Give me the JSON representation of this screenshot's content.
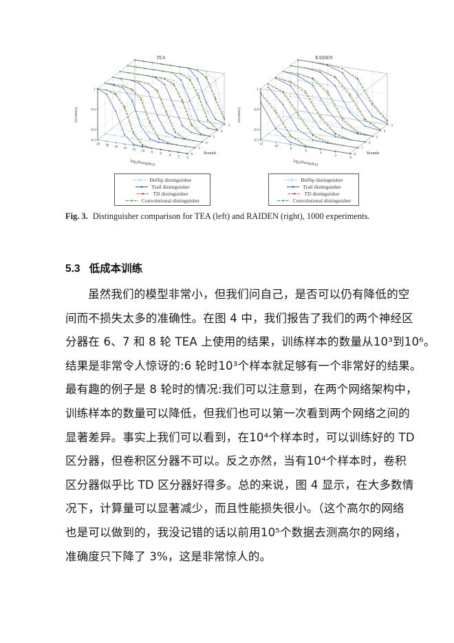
{
  "page": {
    "background": "#ffffff",
    "text_color": "#1a1a1a"
  },
  "figure": {
    "caption_label": "Fig. 3.",
    "caption_text": "Distinguisher comparison for TEA (left) and RAIDEN (right), 1000 experiments.",
    "legend_items": [
      {
        "label": "Bitflip distinguisher",
        "color": "#72cbd1",
        "dash": "2,1.6"
      },
      {
        "label": "Trail distinguisher",
        "color": "#3f51a5",
        "dash": ""
      },
      {
        "label": "TD distinguisher",
        "color": "#bb432e",
        "dash": "3,1.6"
      },
      {
        "label": "Convolutional distinguisher",
        "color": "#3f9b4f",
        "dash": "4,1.8"
      }
    ]
  },
  "section": {
    "number": "5.3",
    "title": "低成本训练",
    "lines": [
      "虽然我们的模型非常小，但我们问自己，是否可以仍有降低的空",
      "间而不损失太多的准确性。在图 4 中，我们报告了我们的两个神经区",
      "分器在 6、7 和 8 轮 TEA 上使用的结果，训练样本的数量从10³到10⁶。",
      "结果是非常令人惊讶的:6 轮时10³个样本就足够有一个非常好的结果。",
      "最有趣的例子是 8 轮时的情况:我们可以注意到，在两个网络架构中，",
      "训练样本的数量可以降低，但我们也可以第一次看到两个网络之间的",
      "显著差异。事实上我们可以看到，在10⁴个样本时，可以训练好的 TD",
      "区分器，但卷积区分器不可以。反之亦然，当有10⁴个样本时，卷积",
      "区分器似乎比 TD 区分器好得多。总的来说，图 4 显示，在大多数情",
      "况下，计算量可以显著减少，而且性能损失很小。（这个高尔的网络",
      "也是可以做到的，我没记错的话以前用10⁵个数据去测高尔的网络，",
      "准确度只下降了 3%，这是非常惊人的。"
    ]
  },
  "chart_data": [
    {
      "type": "line",
      "projection": "3d",
      "title": "TEA",
      "xlabel": "log₂(#samples)",
      "ylabel": "Rounds",
      "zlabel": "Accuracy",
      "x": [
        20,
        18,
        16,
        14,
        12,
        10,
        8,
        6,
        4,
        2,
        0
      ],
      "rounds": [
        3,
        4,
        5,
        6,
        7,
        8
      ],
      "zlim": [
        0.5,
        1
      ],
      "z_ticks": [
        0.5,
        0.6,
        0.8,
        1
      ],
      "grid": true,
      "legend_position": "below",
      "series": [
        {
          "name": "Bitflip distinguisher",
          "color": "#72cbd1",
          "dash": "2,1.6",
          "values_by_round": {
            "3": [
              1,
              1,
              1,
              1,
              1,
              1,
              1,
              1,
              0.99,
              0.92,
              0.58
            ],
            "4": [
              1,
              1,
              1,
              1,
              1,
              1,
              1,
              0.99,
              0.95,
              0.67,
              0.51
            ],
            "5": [
              1,
              1,
              1,
              1,
              1,
              1,
              0.99,
              0.95,
              0.67,
              0.51,
              0.5
            ],
            "6": [
              1,
              0.99,
              0.87,
              0.63,
              0.52,
              0.5,
              0.5,
              0.5,
              0.5,
              0.5,
              0.5
            ],
            "7": [
              0.5,
              0.5,
              0.5,
              0.5,
              0.5,
              0.5,
              0.5,
              0.5,
              0.5,
              0.5,
              0.5
            ],
            "8": [
              0.5,
              0.5,
              0.5,
              0.5,
              0.5,
              0.5,
              0.5,
              0.5,
              0.5,
              0.5,
              0.5
            ]
          }
        },
        {
          "name": "Trail distinguisher",
          "color": "#3f51a5",
          "dash": "",
          "values_by_round": {
            "3": [
              1,
              1,
              1,
              1,
              1,
              1,
              1,
              0.91,
              0.69,
              0.54,
              0.51
            ],
            "4": [
              1,
              1,
              1,
              1,
              1,
              1,
              0.94,
              0.75,
              0.56,
              0.51,
              0.5
            ],
            "5": [
              1,
              1,
              1,
              1,
              0.99,
              0.94,
              0.75,
              0.56,
              0.51,
              0.5,
              0.5
            ],
            "6": [
              1,
              1,
              1,
              0.98,
              0.91,
              0.69,
              0.54,
              0.51,
              0.5,
              0.5,
              0.5
            ],
            "7": [
              1,
              0.99,
              0.98,
              0.87,
              0.63,
              0.52,
              0.5,
              0.5,
              0.5,
              0.5,
              0.5
            ],
            "8": [
              1,
              0.96,
              0.81,
              0.59,
              0.51,
              0.5,
              0.5,
              0.5,
              0.5,
              0.5,
              0.5
            ]
          }
        },
        {
          "name": "TD distinguisher",
          "color": "#bb432e",
          "dash": "3,1.6",
          "values_by_round": {
            "3": [
              1,
              1,
              1,
              1,
              1,
              1,
              1,
              0.99,
              0.94,
              0.75,
              0.56
            ],
            "4": [
              1,
              1,
              1,
              1,
              1,
              1,
              1,
              0.96,
              0.81,
              0.59,
              0.51
            ],
            "5": [
              1,
              1,
              1,
              1,
              1,
              1,
              0.96,
              0.81,
              0.59,
              0.51,
              0.5
            ],
            "6": [
              1,
              1,
              1,
              1,
              0.99,
              0.94,
              0.75,
              0.56,
              0.51,
              0.5,
              0.5
            ],
            "7": [
              1,
              1,
              1,
              0.98,
              0.91,
              0.69,
              0.54,
              0.51,
              0.5,
              0.5,
              0.5
            ],
            "8": [
              1,
              1,
              0.98,
              0.87,
              0.63,
              0.52,
              0.5,
              0.5,
              0.5,
              0.5,
              0.5
            ]
          }
        },
        {
          "name": "Convolutional distinguisher",
          "color": "#3f9b4f",
          "dash": "4,1.8",
          "values_by_round": {
            "3": [
              1,
              1,
              1,
              1,
              1,
              1,
              1,
              0.99,
              0.93,
              0.73,
              0.55
            ],
            "4": [
              1,
              1,
              1,
              1,
              1,
              1,
              1,
              0.95,
              0.79,
              0.58,
              0.51
            ],
            "5": [
              1,
              1,
              1,
              1,
              1,
              0.99,
              0.95,
              0.79,
              0.58,
              0.51,
              0.5
            ],
            "6": [
              1,
              1,
              1,
              1,
              0.99,
              0.93,
              0.73,
              0.55,
              0.51,
              0.5,
              0.5
            ],
            "7": [
              1,
              1,
              1,
              0.97,
              0.89,
              0.67,
              0.53,
              0.51,
              0.5,
              0.5,
              0.5
            ],
            "8": [
              1,
              1,
              0.97,
              0.85,
              0.61,
              0.51,
              0.5,
              0.5,
              0.5,
              0.5,
              0.5
            ]
          }
        }
      ]
    },
    {
      "type": "line",
      "projection": "3d",
      "title": "RAIDEN",
      "xlabel": "log₂(#samples)",
      "ylabel": "Rounds",
      "zlabel": "Accuracy",
      "x": [
        12,
        10,
        8,
        6,
        4,
        2,
        0
      ],
      "rounds": [
        3,
        4,
        5,
        6,
        7,
        8
      ],
      "zlim": [
        0.5,
        1
      ],
      "z_ticks": [
        0.5,
        0.6,
        0.8,
        1
      ],
      "grid": true,
      "legend_position": "below",
      "series": [
        {
          "name": "Bitflip distinguisher",
          "color": "#72cbd1",
          "dash": "2,1.6",
          "values_by_round": {
            "3": [
              0.8,
              0.8,
              0.8,
              0.8,
              0.78,
              0.68,
              0.54
            ],
            "4": [
              0.7,
              0.7,
              0.7,
              0.69,
              0.65,
              0.57,
              0.51
            ],
            "5": [
              0.56,
              0.56,
              0.55,
              0.55,
              0.53,
              0.51,
              0.5
            ],
            "6": [
              0.5,
              0.5,
              0.5,
              0.5,
              0.5,
              0.5,
              0.5
            ],
            "7": [
              0.5,
              0.5,
              0.5,
              0.5,
              0.5,
              0.5,
              0.5
            ],
            "8": [
              0.5,
              0.5,
              0.5,
              0.5,
              0.5,
              0.5,
              0.5
            ]
          }
        },
        {
          "name": "Trail distinguisher",
          "color": "#3f51a5",
          "dash": "",
          "values_by_round": {
            "3": [
              1,
              1,
              0.99,
              0.94,
              0.75,
              0.56,
              0.51
            ],
            "4": [
              1,
              1,
              0.98,
              0.87,
              0.63,
              0.52,
              0.5
            ],
            "5": [
              1,
              0.98,
              0.91,
              0.69,
              0.54,
              0.5,
              0.5
            ],
            "6": [
              0.99,
              0.94,
              0.75,
              0.56,
              0.51,
              0.5,
              0.5
            ],
            "7": [
              0.96,
              0.81,
              0.59,
              0.51,
              0.5,
              0.5,
              0.5
            ],
            "8": [
              0.87,
              0.63,
              0.52,
              0.5,
              0.5,
              0.5,
              0.5
            ]
          }
        },
        {
          "name": "TD distinguisher",
          "color": "#bb432e",
          "dash": "3,1.6",
          "values_by_round": {
            "3": [
              1,
              1,
              1,
              0.98,
              0.91,
              0.69,
              0.54
            ],
            "4": [
              1,
              1,
              1,
              0.96,
              0.81,
              0.59,
              0.51
            ],
            "5": [
              1,
              1,
              0.98,
              0.87,
              0.63,
              0.52,
              0.5
            ],
            "6": [
              1,
              0.98,
              0.91,
              0.69,
              0.54,
              0.5,
              0.5
            ],
            "7": [
              0.99,
              0.94,
              0.75,
              0.56,
              0.51,
              0.5,
              0.5
            ],
            "8": [
              0.96,
              0.81,
              0.59,
              0.51,
              0.5,
              0.5,
              0.5
            ]
          }
        },
        {
          "name": "Convolutional distinguisher",
          "color": "#3f9b4f",
          "dash": "4,1.8",
          "values_by_round": {
            "3": [
              1,
              1,
              1,
              0.98,
              0.9,
              0.67,
              0.53
            ],
            "4": [
              1,
              1,
              1,
              0.95,
              0.79,
              0.58,
              0.51
            ],
            "5": [
              1,
              1,
              0.97,
              0.85,
              0.61,
              0.51,
              0.5
            ],
            "6": [
              1,
              0.97,
              0.89,
              0.67,
              0.53,
              0.5,
              0.5
            ],
            "7": [
              0.99,
              0.93,
              0.73,
              0.55,
              0.5,
              0.5,
              0.5
            ],
            "8": [
              0.95,
              0.79,
              0.58,
              0.51,
              0.5,
              0.5,
              0.5
            ]
          }
        }
      ]
    }
  ]
}
